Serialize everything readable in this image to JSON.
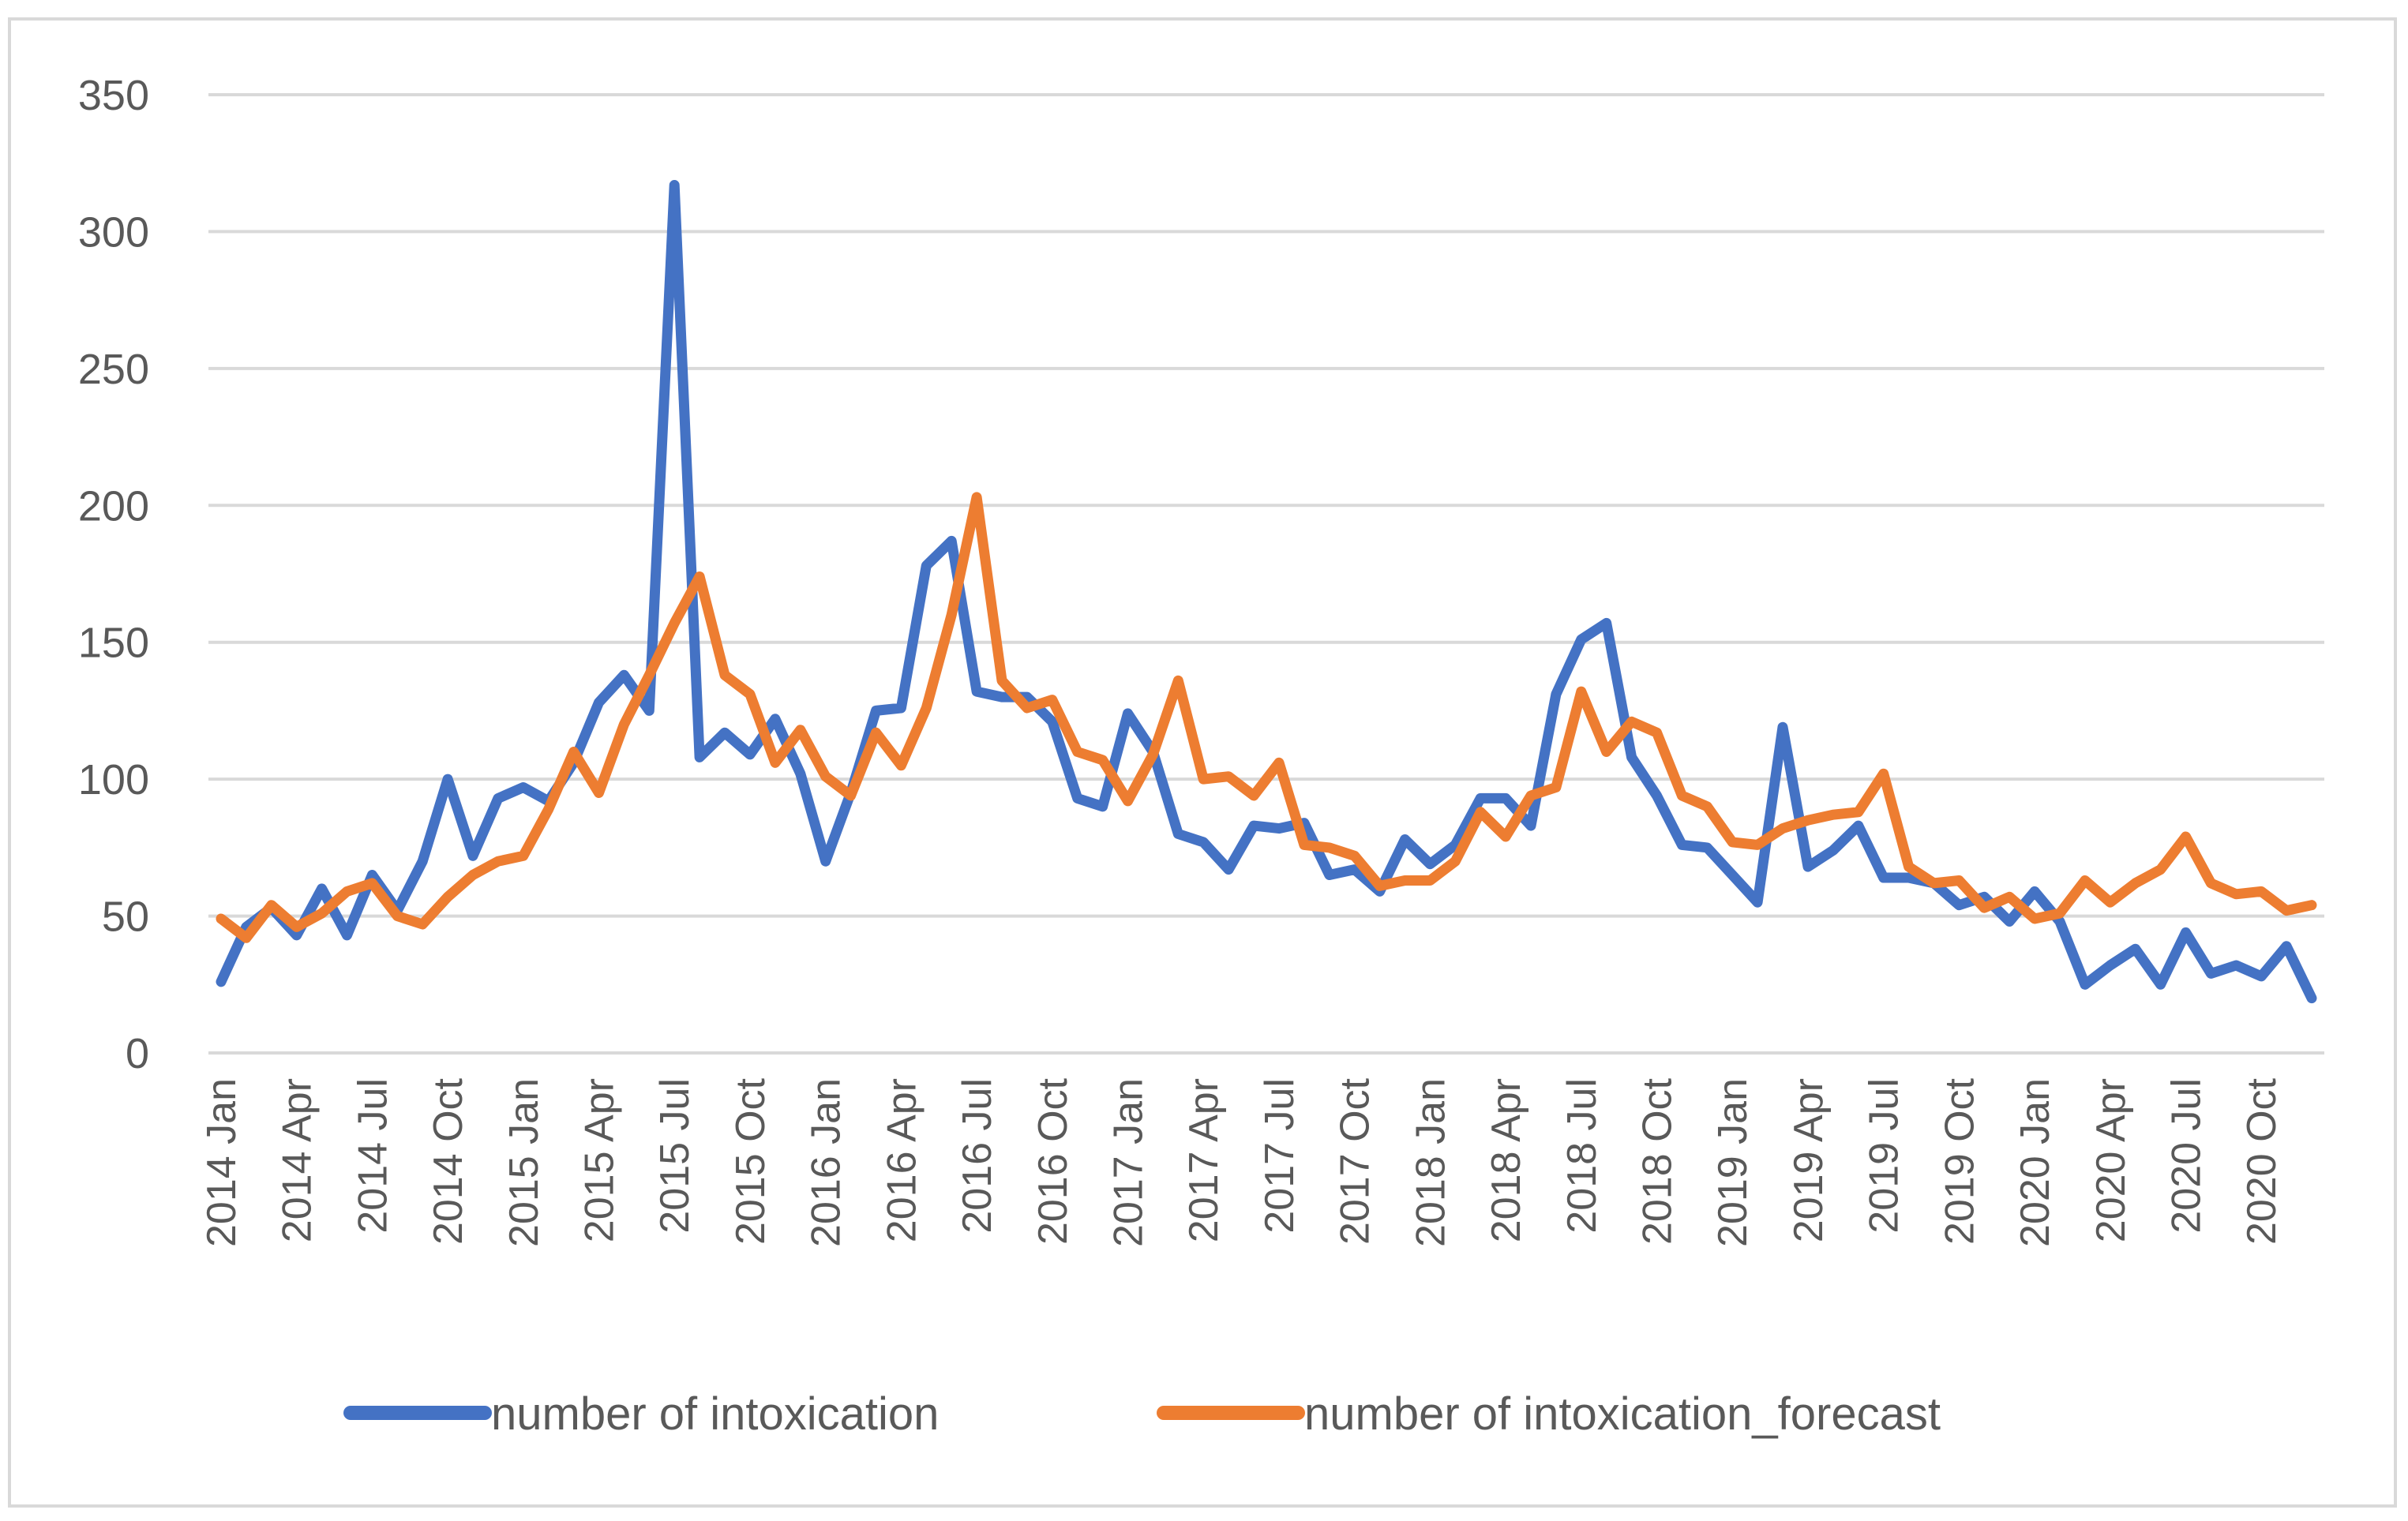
{
  "chart_data": {
    "type": "line",
    "title": "",
    "xlabel": "",
    "ylabel": "",
    "ylim": [
      0,
      350
    ],
    "yticks": [
      0,
      50,
      100,
      150,
      200,
      250,
      300,
      350
    ],
    "grid": true,
    "legend_position": "bottom",
    "x_tick_labels": [
      "2014 Jan",
      "2014 Apr",
      "2014 Jul",
      "2014 Oct",
      "2015 Jan",
      "2015 Apr",
      "2015 Jul",
      "2015 Oct",
      "2016 Jan",
      "2016 Apr",
      "2016 Jul",
      "2016 Oct",
      "2017 Jan",
      "2017 Apr",
      "2017 Jul",
      "2017 Oct",
      "2018 Jan",
      "2018 Apr",
      "2018 Jul",
      "2018 Oct",
      "2019 Jan",
      "2019 Apr",
      "2019 Jul",
      "2019 Oct",
      "2020 Jan",
      "2020 Apr",
      "2020 Jul",
      "2020 Oct"
    ],
    "x_tick_every": 3,
    "series": [
      {
        "name": "number of intoxication",
        "color": "#4472c4",
        "values": [
          26,
          46,
          53,
          43,
          60,
          43,
          65,
          52,
          70,
          100,
          72,
          93,
          97,
          92,
          106,
          128,
          138,
          125,
          317,
          108,
          117,
          109,
          122,
          102,
          70,
          95,
          125,
          126,
          178,
          187,
          132,
          130,
          130,
          121,
          93,
          90,
          124,
          110,
          80,
          77,
          67,
          83,
          82,
          84,
          65,
          67,
          59,
          78,
          69,
          76,
          93,
          93,
          83,
          131,
          151,
          157,
          108,
          94,
          76,
          75,
          65,
          55,
          119,
          68,
          74,
          83,
          64,
          64,
          62,
          54,
          57,
          48,
          59,
          48,
          25,
          32,
          38,
          25,
          44,
          29,
          32,
          28,
          39,
          20
        ]
      },
      {
        "name": "number of intoxication_forecast",
        "color": "#ed7d31",
        "values": [
          49,
          42,
          54,
          46,
          51,
          59,
          62,
          50,
          47,
          57,
          65,
          70,
          72,
          89,
          110,
          95,
          120,
          138,
          157,
          174,
          138,
          131,
          106,
          118,
          101,
          94,
          117,
          105,
          126,
          160,
          203,
          136,
          126,
          129,
          110,
          107,
          92,
          109,
          136,
          100,
          101,
          94,
          106,
          76,
          75,
          72,
          61,
          63,
          63,
          70,
          88,
          79,
          94,
          97,
          132,
          110,
          121,
          117,
          94,
          90,
          77,
          76,
          82,
          85,
          87,
          88,
          102,
          68,
          62,
          63,
          53,
          57,
          49,
          51,
          63,
          55,
          62,
          67,
          79,
          62,
          58,
          59,
          52,
          54
        ]
      }
    ]
  }
}
